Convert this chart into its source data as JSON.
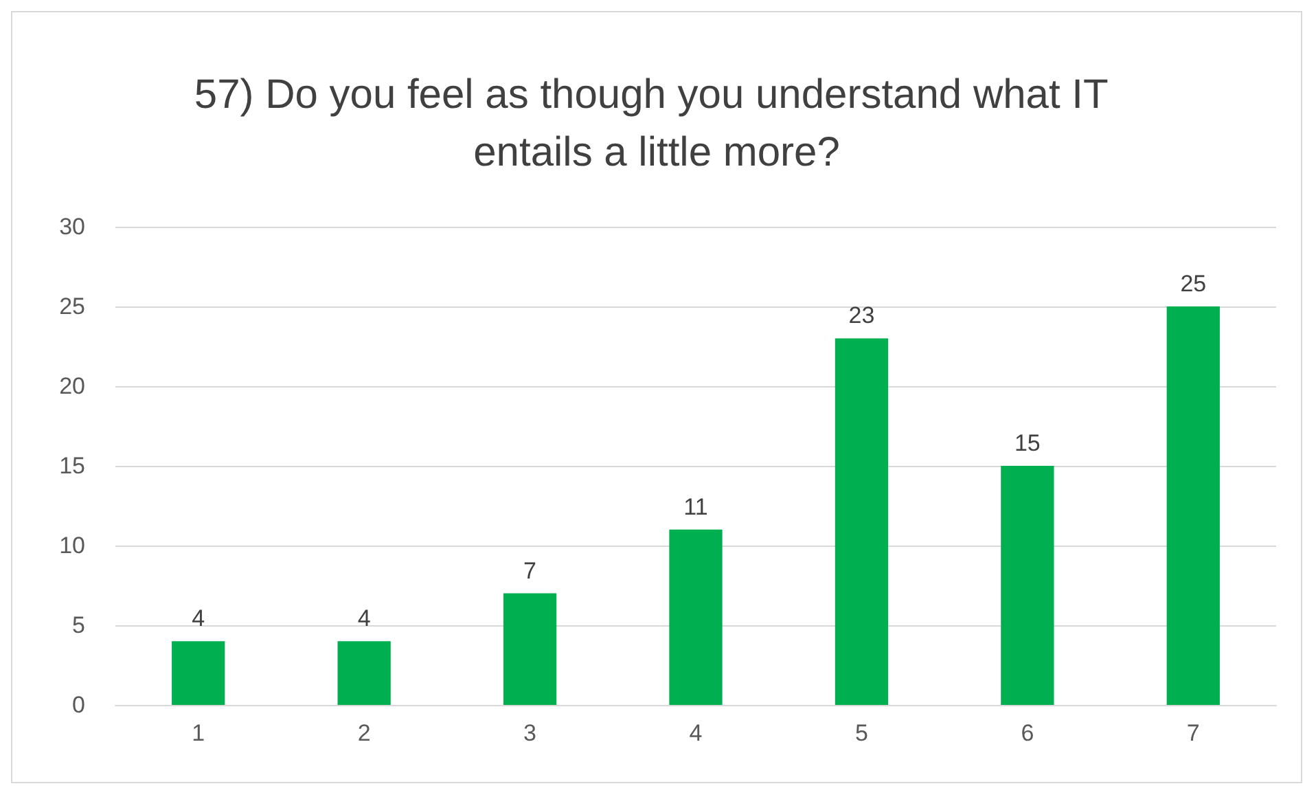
{
  "chart_data": {
    "type": "bar",
    "title": "57) Do you feel as though you understand what IT entails a little more?",
    "categories": [
      "1",
      "2",
      "3",
      "4",
      "5",
      "6",
      "7"
    ],
    "values": [
      4,
      4,
      7,
      11,
      23,
      15,
      25
    ],
    "color": "#00b050",
    "ylim": [
      0,
      30
    ],
    "yticks": [
      0,
      5,
      10,
      15,
      20,
      25,
      30
    ],
    "grid": "y",
    "data_labels": true
  }
}
